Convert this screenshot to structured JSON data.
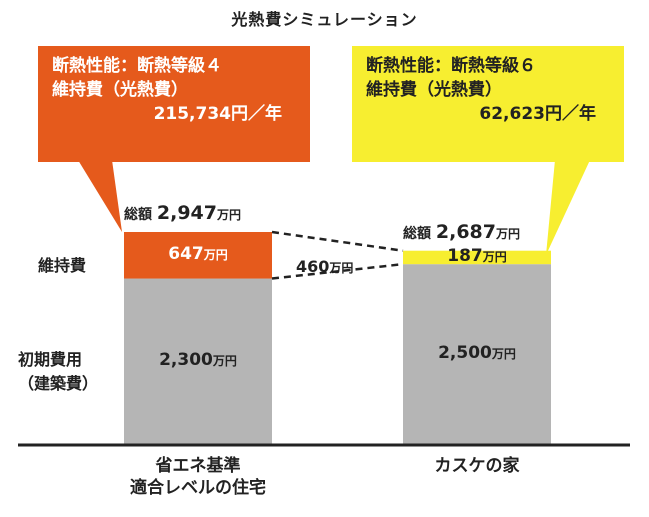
{
  "title": "光熱費シミュレーション",
  "callouts": {
    "left": {
      "line1": "断熱性能：断熱等級４",
      "line2": "維持費（光熱費）",
      "amount": "215,734円／年"
    },
    "right": {
      "line1": "断熱性能：断熱等級６",
      "line2": "維持費（光熱費）",
      "amount": "62,623円／年"
    }
  },
  "row_labels": {
    "maintenance": "維持費",
    "initial_line1": "初期費用",
    "initial_line2": "（建築費）"
  },
  "difference_label": {
    "value": "460",
    "unit": "万円"
  },
  "colors": {
    "standard_maintenance": "#e55a1c",
    "kasuke_maintenance": "#f7ee30",
    "initial": "#b5b5b5",
    "axis": "#222222"
  },
  "chart_data": {
    "type": "bar",
    "stacked": true,
    "title": "光熱費シミュレーション",
    "unit": "万円",
    "categories": [
      {
        "line1": "省エネ基準",
        "line2": "適合レベルの住宅"
      },
      {
        "line1": "カスケの家",
        "line2": ""
      }
    ],
    "series": [
      {
        "name": "初期費用（建築費）",
        "values": [
          2300,
          2500
        ],
        "labels": [
          "2,300",
          "2,500"
        ]
      },
      {
        "name": "維持費",
        "values": [
          647,
          187
        ],
        "labels": [
          "647",
          "187"
        ]
      }
    ],
    "totals": [
      {
        "prefix": "総額",
        "value": "2,947",
        "unit": "万円"
      },
      {
        "prefix": "総額",
        "value": "2,687",
        "unit": "万円"
      }
    ],
    "difference": 460,
    "ylim": [
      0,
      2947
    ]
  }
}
